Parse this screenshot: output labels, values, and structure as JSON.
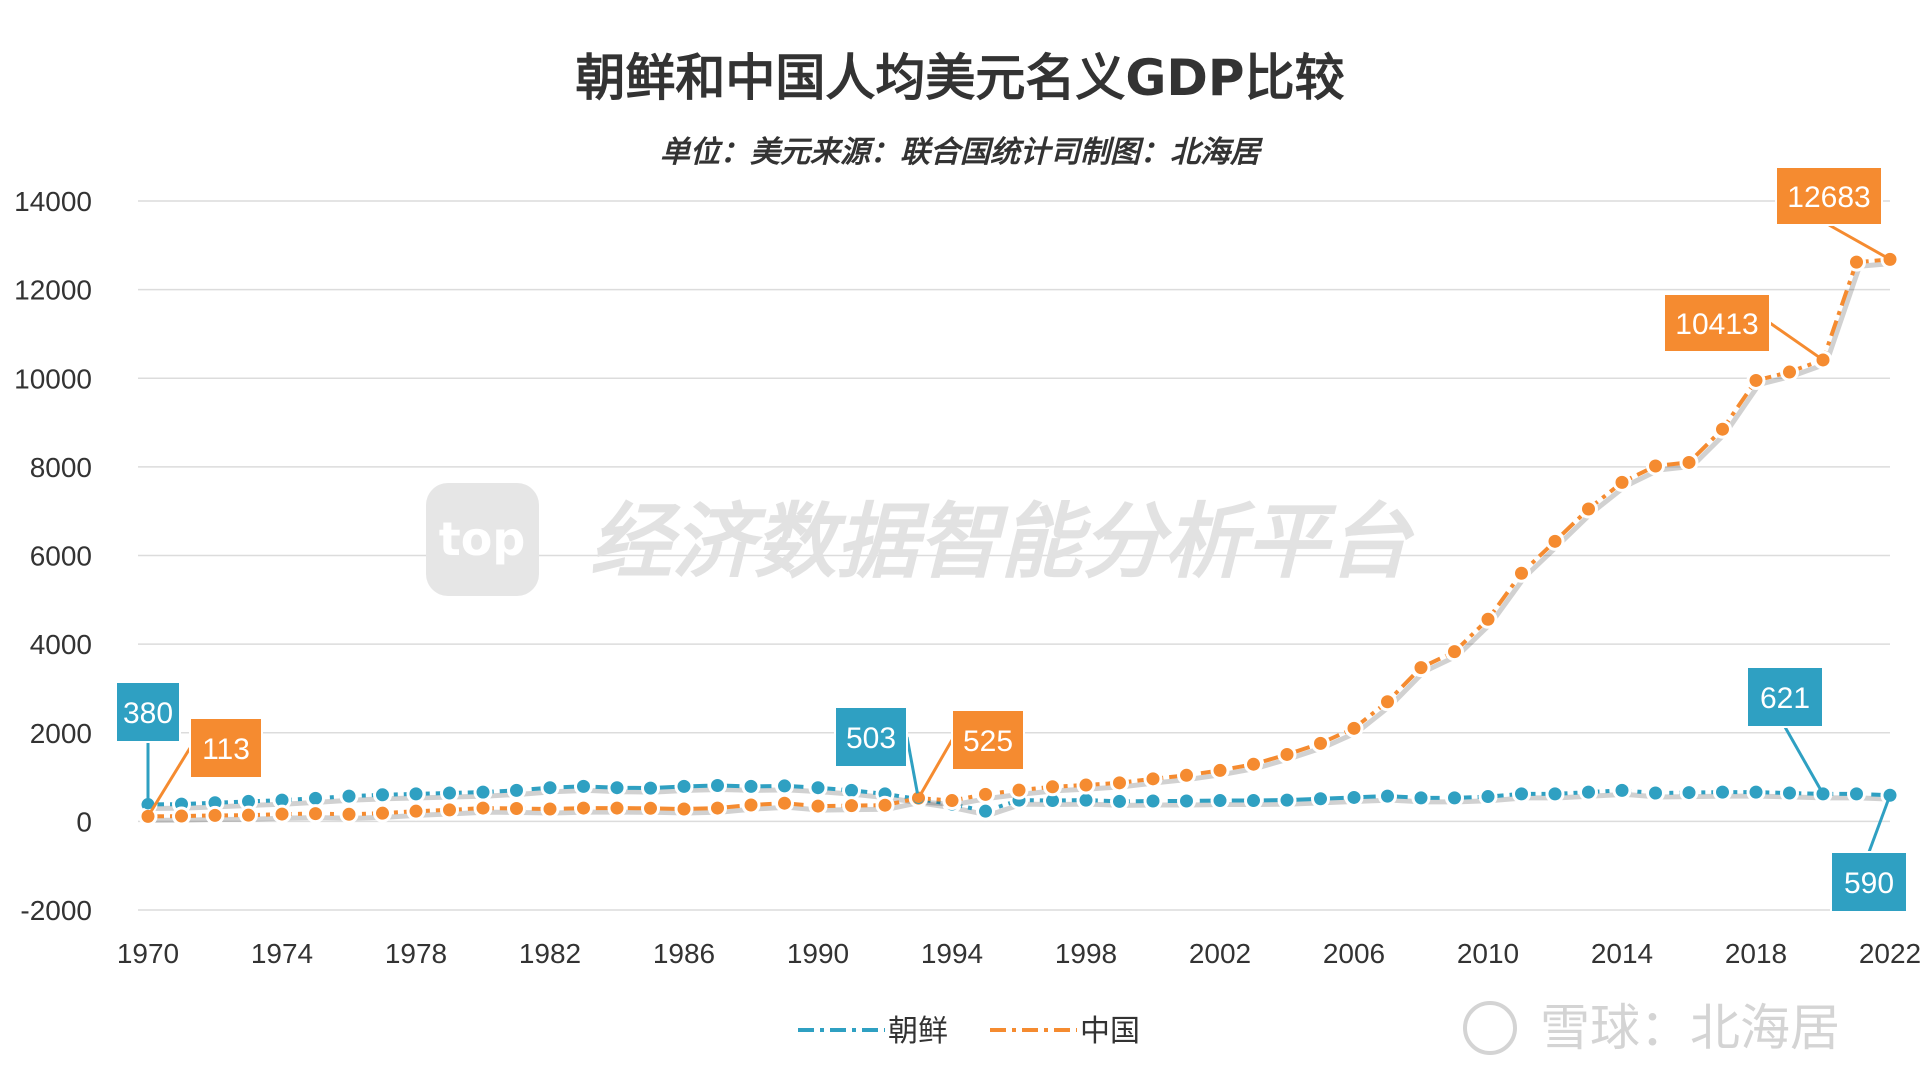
{
  "chart_data": {
    "type": "line",
    "title": "朝鲜和中国人均美元名义GDP比较",
    "subtitle": "单位：美元来源：联合国统计司制图：北海居",
    "x": [
      1970,
      1971,
      1972,
      1973,
      1974,
      1975,
      1976,
      1977,
      1978,
      1979,
      1980,
      1981,
      1982,
      1983,
      1984,
      1985,
      1986,
      1987,
      1988,
      1989,
      1990,
      1991,
      1992,
      1993,
      1994,
      1995,
      1996,
      1997,
      1998,
      1999,
      2000,
      2001,
      2002,
      2003,
      2004,
      2005,
      2006,
      2007,
      2008,
      2009,
      2010,
      2011,
      2012,
      2013,
      2014,
      2015,
      2016,
      2017,
      2018,
      2019,
      2020,
      2021,
      2022
    ],
    "x_ticks": [
      "1970",
      "1974",
      "1978",
      "1982",
      "1986",
      "1990",
      "1994",
      "1998",
      "2002",
      "2006",
      "2010",
      "2014",
      "2018",
      "2022"
    ],
    "y_ticks": [
      "14000",
      "12000",
      "10000",
      "8000",
      "6000",
      "4000",
      "2000",
      "0",
      "-2000"
    ],
    "ylim": [
      -2000,
      14000
    ],
    "grid": true,
    "legend_position": "bottom",
    "series": [
      {
        "name": "朝鲜",
        "color": "#2fa0c2",
        "values": [
          380,
          390,
          420,
          450,
          480,
          520,
          570,
          600,
          620,
          640,
          660,
          700,
          760,
          790,
          760,
          750,
          790,
          810,
          790,
          800,
          760,
          700,
          620,
          503,
          390,
          230,
          480,
          470,
          480,
          450,
          460,
          460,
          470,
          470,
          480,
          510,
          540,
          570,
          530,
          530,
          560,
          620,
          620,
          660,
          700,
          640,
          650,
          660,
          660,
          640,
          621,
          620,
          590
        ]
      },
      {
        "name": "中国",
        "color": "#f58b30",
        "values": [
          113,
          120,
          135,
          140,
          165,
          175,
          160,
          185,
          230,
          260,
          300,
          290,
          280,
          300,
          300,
          295,
          280,
          300,
          370,
          410,
          345,
          355,
          365,
          525,
          470,
          610,
          705,
          780,
          820,
          870,
          960,
          1040,
          1150,
          1290,
          1510,
          1760,
          2100,
          2700,
          3470,
          3830,
          4560,
          5600,
          6320,
          7050,
          7650,
          8020,
          8100,
          8850,
          9950,
          10140,
          10413,
          12620,
          12683
        ]
      }
    ],
    "callouts": [
      {
        "series": "朝鲜",
        "year": 1970,
        "label": "380"
      },
      {
        "series": "中国",
        "year": 1970,
        "label": "113"
      },
      {
        "series": "朝鲜",
        "year": 1993,
        "label": "503"
      },
      {
        "series": "中国",
        "year": 1993,
        "label": "525"
      },
      {
        "series": "朝鲜",
        "year": 2020,
        "label": "621"
      },
      {
        "series": "朝鲜",
        "year": 2022,
        "label": "590"
      },
      {
        "series": "中国",
        "year": 2020,
        "label": "10413"
      },
      {
        "series": "中国",
        "year": 2022,
        "label": "12683"
      }
    ]
  },
  "watermark": {
    "icon_text": "top",
    "text": "经济数据智能分析平台"
  },
  "credit": {
    "text": "雪球：北海居"
  }
}
